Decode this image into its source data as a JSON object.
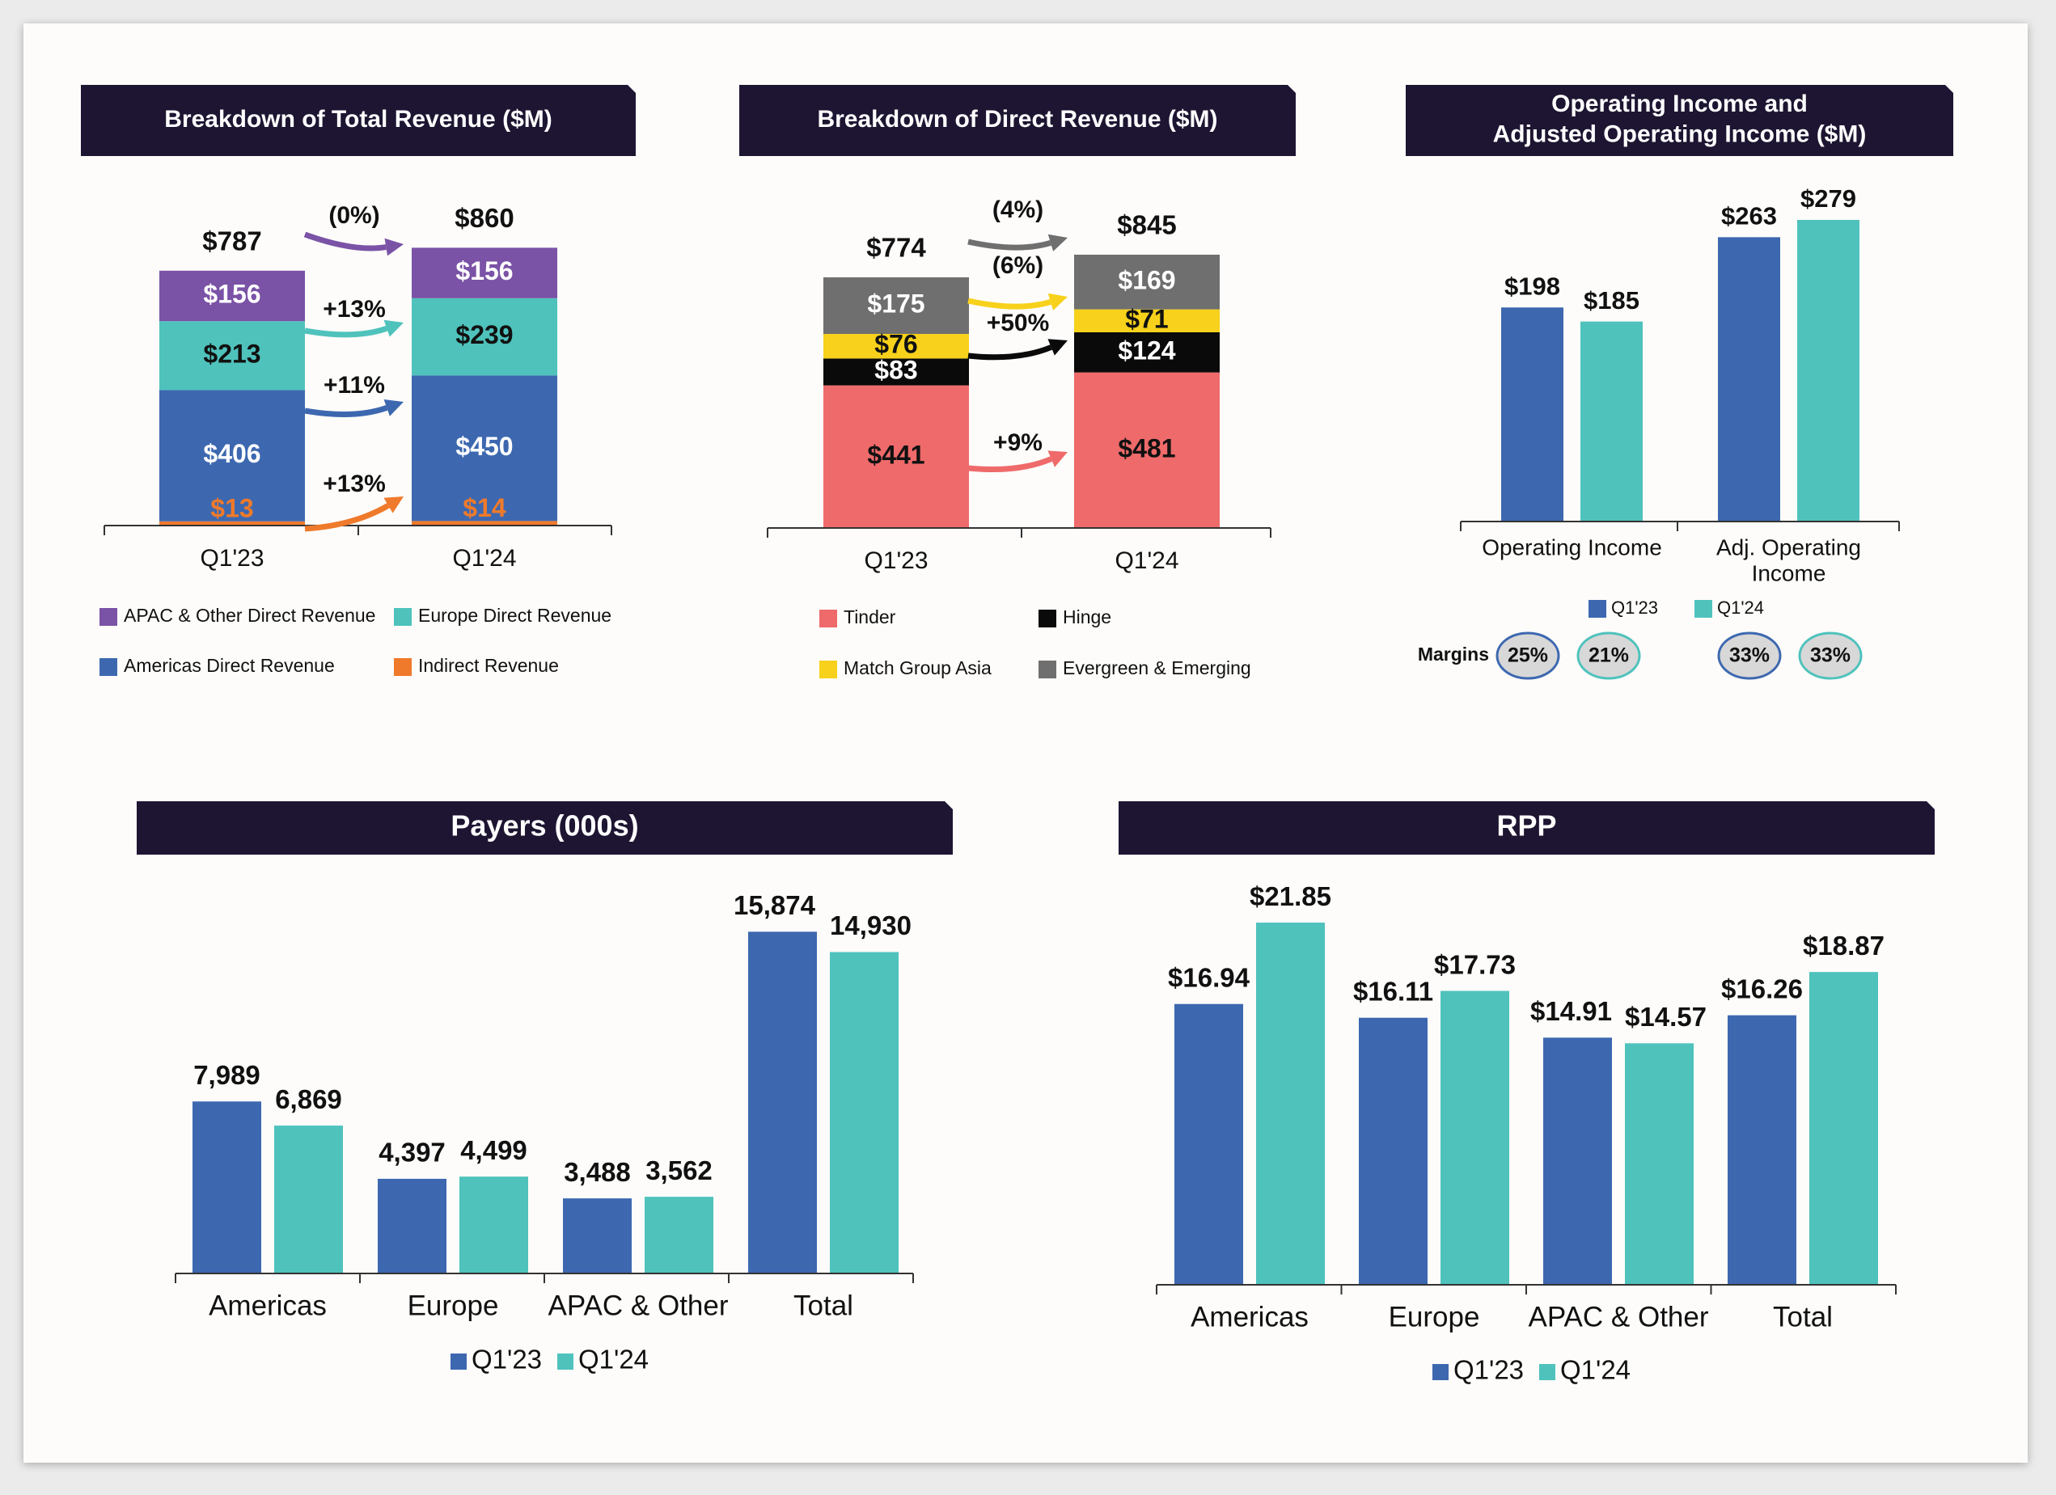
{
  "colors": {
    "navy": "#1e1532",
    "purple": "#7a52a6",
    "teal": "#4fc2bc",
    "blue": "#3d68b0",
    "orange": "#ef7a2b",
    "salmon": "#ef6a6a",
    "yellow": "#f7d11b",
    "black": "#0a0a0a",
    "gray": "#6f6f6f",
    "text": "#111111",
    "circle_fill": "#d8d8d8"
  },
  "chart_data": [
    {
      "type": "bar",
      "stacked": true,
      "title": "Breakdown of Total Revenue ($M)",
      "categories": [
        "Q1'23",
        "Q1'24"
      ],
      "totals": [
        "$787",
        "$860"
      ],
      "series": [
        {
          "name": "Indirect Revenue",
          "color": "#ef7a2b",
          "values": [
            13,
            14
          ],
          "labels": [
            "$13",
            "$14"
          ],
          "label_color": "#ef7a2b"
        },
        {
          "name": "Americas Direct Revenue",
          "color": "#3d68b0",
          "values": [
            406,
            450
          ],
          "labels": [
            "$406",
            "$450"
          ],
          "label_color": "#ffffff"
        },
        {
          "name": "Europe Direct Revenue",
          "color": "#4fc2bc",
          "values": [
            213,
            239
          ],
          "labels": [
            "$213",
            "$239"
          ],
          "label_color": "#111111"
        },
        {
          "name": "APAC & Other Direct Revenue",
          "color": "#7a52a6",
          "values": [
            156,
            156
          ],
          "labels": [
            "$156",
            "$156"
          ],
          "label_color": "#ffffff"
        }
      ],
      "growth": [
        {
          "series": "APAC & Other Direct Revenue",
          "label": "(0%)"
        },
        {
          "series": "Europe Direct Revenue",
          "label": "+13%"
        },
        {
          "series": "Americas Direct Revenue",
          "label": "+11%"
        },
        {
          "series": "Indirect Revenue",
          "label": "+13%"
        }
      ],
      "legend": [
        "APAC & Other Direct Revenue",
        "Europe Direct Revenue",
        "Americas Direct Revenue",
        "Indirect Revenue"
      ]
    },
    {
      "type": "bar",
      "stacked": true,
      "title": "Breakdown of  Direct Revenue ($M)",
      "categories": [
        "Q1'23",
        "Q1'24"
      ],
      "totals": [
        "$774",
        "$845"
      ],
      "series": [
        {
          "name": "Tinder",
          "color": "#ef6a6a",
          "values": [
            441,
            481
          ],
          "labels": [
            "$441",
            "$481"
          ],
          "label_color": "#111111"
        },
        {
          "name": "Hinge",
          "color": "#0a0a0a",
          "values": [
            83,
            124
          ],
          "labels": [
            "$83",
            "$124"
          ],
          "label_color": "#ffffff"
        },
        {
          "name": "Match Group Asia",
          "color": "#f7d11b",
          "values": [
            76,
            71
          ],
          "labels": [
            "$76",
            "$71"
          ],
          "label_color": "#111111"
        },
        {
          "name": "Evergreen & Emerging",
          "color": "#6f6f6f",
          "values": [
            175,
            169
          ],
          "labels": [
            "$175",
            "$169"
          ],
          "label_color": "#ffffff"
        }
      ],
      "growth": [
        {
          "series": "Evergreen & Emerging",
          "label": "(4%)"
        },
        {
          "series": "Match Group Asia",
          "label": "(6%)"
        },
        {
          "series": "Hinge",
          "label": "+50%"
        },
        {
          "series": "Tinder",
          "label": "+9%"
        }
      ],
      "legend": [
        "Tinder",
        "Hinge",
        "Match Group Asia",
        "Evergreen & Emerging"
      ]
    },
    {
      "type": "bar",
      "title_lines": [
        "Operating Income and",
        "Adjusted Operating Income ($M)"
      ],
      "categories": [
        "Operating Income",
        "Adj. Operating Income"
      ],
      "category_lines": [
        [
          "Operating Income"
        ],
        [
          "Adj. Operating",
          "Income"
        ]
      ],
      "series": [
        {
          "name": "Q1'23",
          "color": "#3d68b0",
          "values": [
            198,
            263
          ],
          "labels": [
            "$198",
            "$263"
          ]
        },
        {
          "name": "Q1'24",
          "color": "#4fc2bc",
          "values": [
            185,
            279
          ],
          "labels": [
            "$185",
            "$279"
          ]
        }
      ],
      "margins_label": "Margins",
      "margins": [
        [
          "25%",
          "21%"
        ],
        [
          "33%",
          "33%"
        ]
      ],
      "legend": [
        "Q1'23",
        "Q1'24"
      ]
    },
    {
      "type": "bar",
      "title": "Payers (000s)",
      "categories": [
        "Americas",
        "Europe",
        "APAC & Other",
        "Total"
      ],
      "series": [
        {
          "name": "Q1'23",
          "color": "#3d68b0",
          "values": [
            7989,
            4397,
            3488,
            15874
          ],
          "labels": [
            "7,989",
            "4,397",
            "3,488",
            "15,874"
          ]
        },
        {
          "name": "Q1'24",
          "color": "#4fc2bc",
          "values": [
            6869,
            4499,
            3562,
            14930
          ],
          "labels": [
            "6,869",
            "4,499",
            "3,562",
            "14,930"
          ]
        }
      ],
      "ylim": [
        0,
        16000
      ],
      "legend": [
        "Q1'23",
        "Q1'24"
      ]
    },
    {
      "type": "bar",
      "title": "RPP",
      "categories": [
        "Americas",
        "Europe",
        "APAC & Other",
        "Total"
      ],
      "series": [
        {
          "name": "Q1'23",
          "color": "#3d68b0",
          "values": [
            16.94,
            16.11,
            14.91,
            16.26
          ],
          "labels": [
            "$16.94",
            "$16.11",
            "$14.91",
            "$16.26"
          ]
        },
        {
          "name": "Q1'24",
          "color": "#4fc2bc",
          "values": [
            21.85,
            17.73,
            14.57,
            18.87
          ],
          "labels": [
            "$21.85",
            "$17.73",
            "$14.57",
            "$18.87"
          ]
        }
      ],
      "ylim": [
        0,
        22
      ],
      "legend": [
        "Q1'23",
        "Q1'24"
      ]
    }
  ]
}
